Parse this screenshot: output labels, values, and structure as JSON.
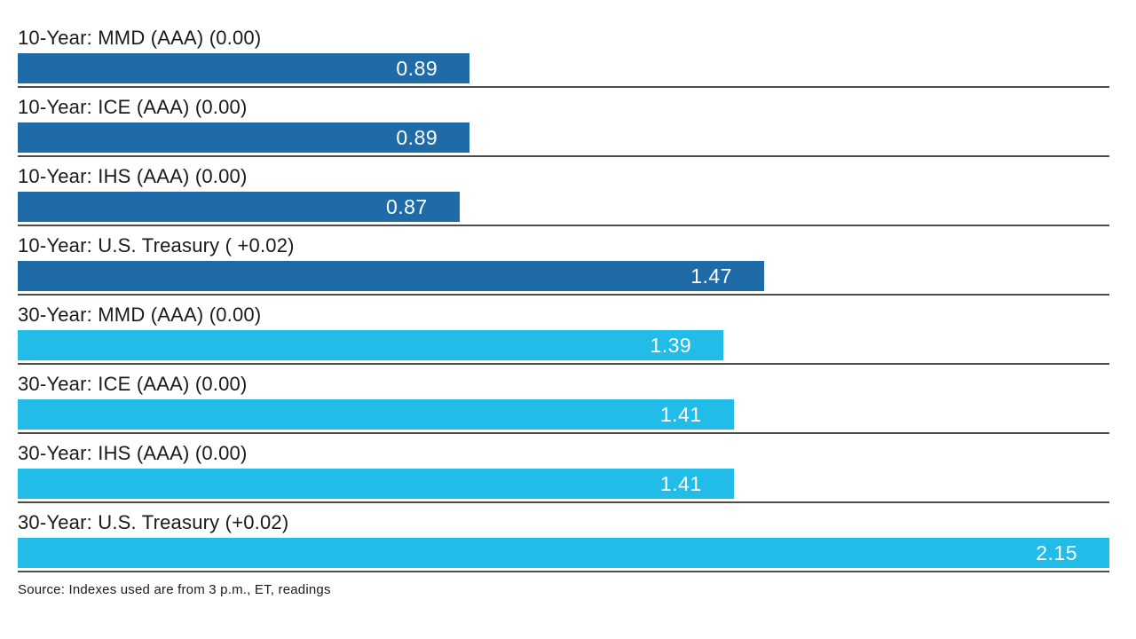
{
  "chart_data": {
    "type": "bar",
    "orientation": "horizontal",
    "categories": [
      "10-Year: MMD (AAA) (0.00)",
      "10-Year: ICE (AAA) (0.00)",
      "10-Year: IHS (AAA) (0.00)",
      "10-Year: U.S. Treasury ( +0.02)",
      "30-Year: MMD (AAA) (0.00)",
      "30-Year: ICE (AAA) (0.00)",
      "30-Year: IHS (AAA) (0.00)",
      "30-Year: U.S. Treasury (+0.02)"
    ],
    "values": [
      0.89,
      0.89,
      0.87,
      1.47,
      1.39,
      1.41,
      1.41,
      2.15
    ],
    "title": "",
    "xlabel": "",
    "ylabel": "",
    "xlim": [
      0,
      2.15
    ],
    "grid": false,
    "legend": "none",
    "value_labels_position": "inside-end",
    "series_groups": [
      {
        "name": "10-Year",
        "color": "#1f6ba8",
        "indexes": [
          0,
          1,
          2,
          3
        ]
      },
      {
        "name": "30-Year",
        "color": "#21bce8",
        "indexes": [
          4,
          5,
          6,
          7
        ]
      }
    ]
  },
  "chart": {
    "bars": [
      {
        "label": "10-Year: MMD (AAA) (0.00)",
        "value": 0.89,
        "display_value": "0.89",
        "group": "10-Year",
        "color": "#1f6ba8"
      },
      {
        "label": "10-Year: ICE (AAA) (0.00)",
        "value": 0.89,
        "display_value": "0.89",
        "group": "10-Year",
        "color": "#1f6ba8"
      },
      {
        "label": "10-Year: IHS (AAA) (0.00)",
        "value": 0.87,
        "display_value": "0.87",
        "group": "10-Year",
        "color": "#1f6ba8"
      },
      {
        "label": "10-Year: U.S. Treasury ( +0.02)",
        "value": 1.47,
        "display_value": "1.47",
        "group": "10-Year",
        "color": "#1f6ba8"
      },
      {
        "label": "30-Year: MMD (AAA) (0.00)",
        "value": 1.39,
        "display_value": "1.39",
        "group": "30-Year",
        "color": "#21bce8"
      },
      {
        "label": "30-Year: ICE (AAA) (0.00)",
        "value": 1.41,
        "display_value": "1.41",
        "group": "30-Year",
        "color": "#21bce8"
      },
      {
        "label": "30-Year: IHS (AAA) (0.00)",
        "value": 1.41,
        "display_value": "1.41",
        "group": "30-Year",
        "color": "#21bce8"
      },
      {
        "label": "30-Year: U.S. Treasury (+0.02)",
        "value": 2.15,
        "display_value": "2.15",
        "group": "30-Year",
        "color": "#21bce8"
      }
    ],
    "max_value": 2.15
  },
  "colors": {
    "ten_year_bar": "#1f6ba8",
    "thirty_year_bar": "#21bce8",
    "divider_line": "#4d4d4d",
    "label_text": "#1a1a1a",
    "value_text": "#ffffff",
    "background": "#ffffff"
  },
  "footer": {
    "source_note": "Source: Indexes used are from 3 p.m., ET, readings"
  }
}
